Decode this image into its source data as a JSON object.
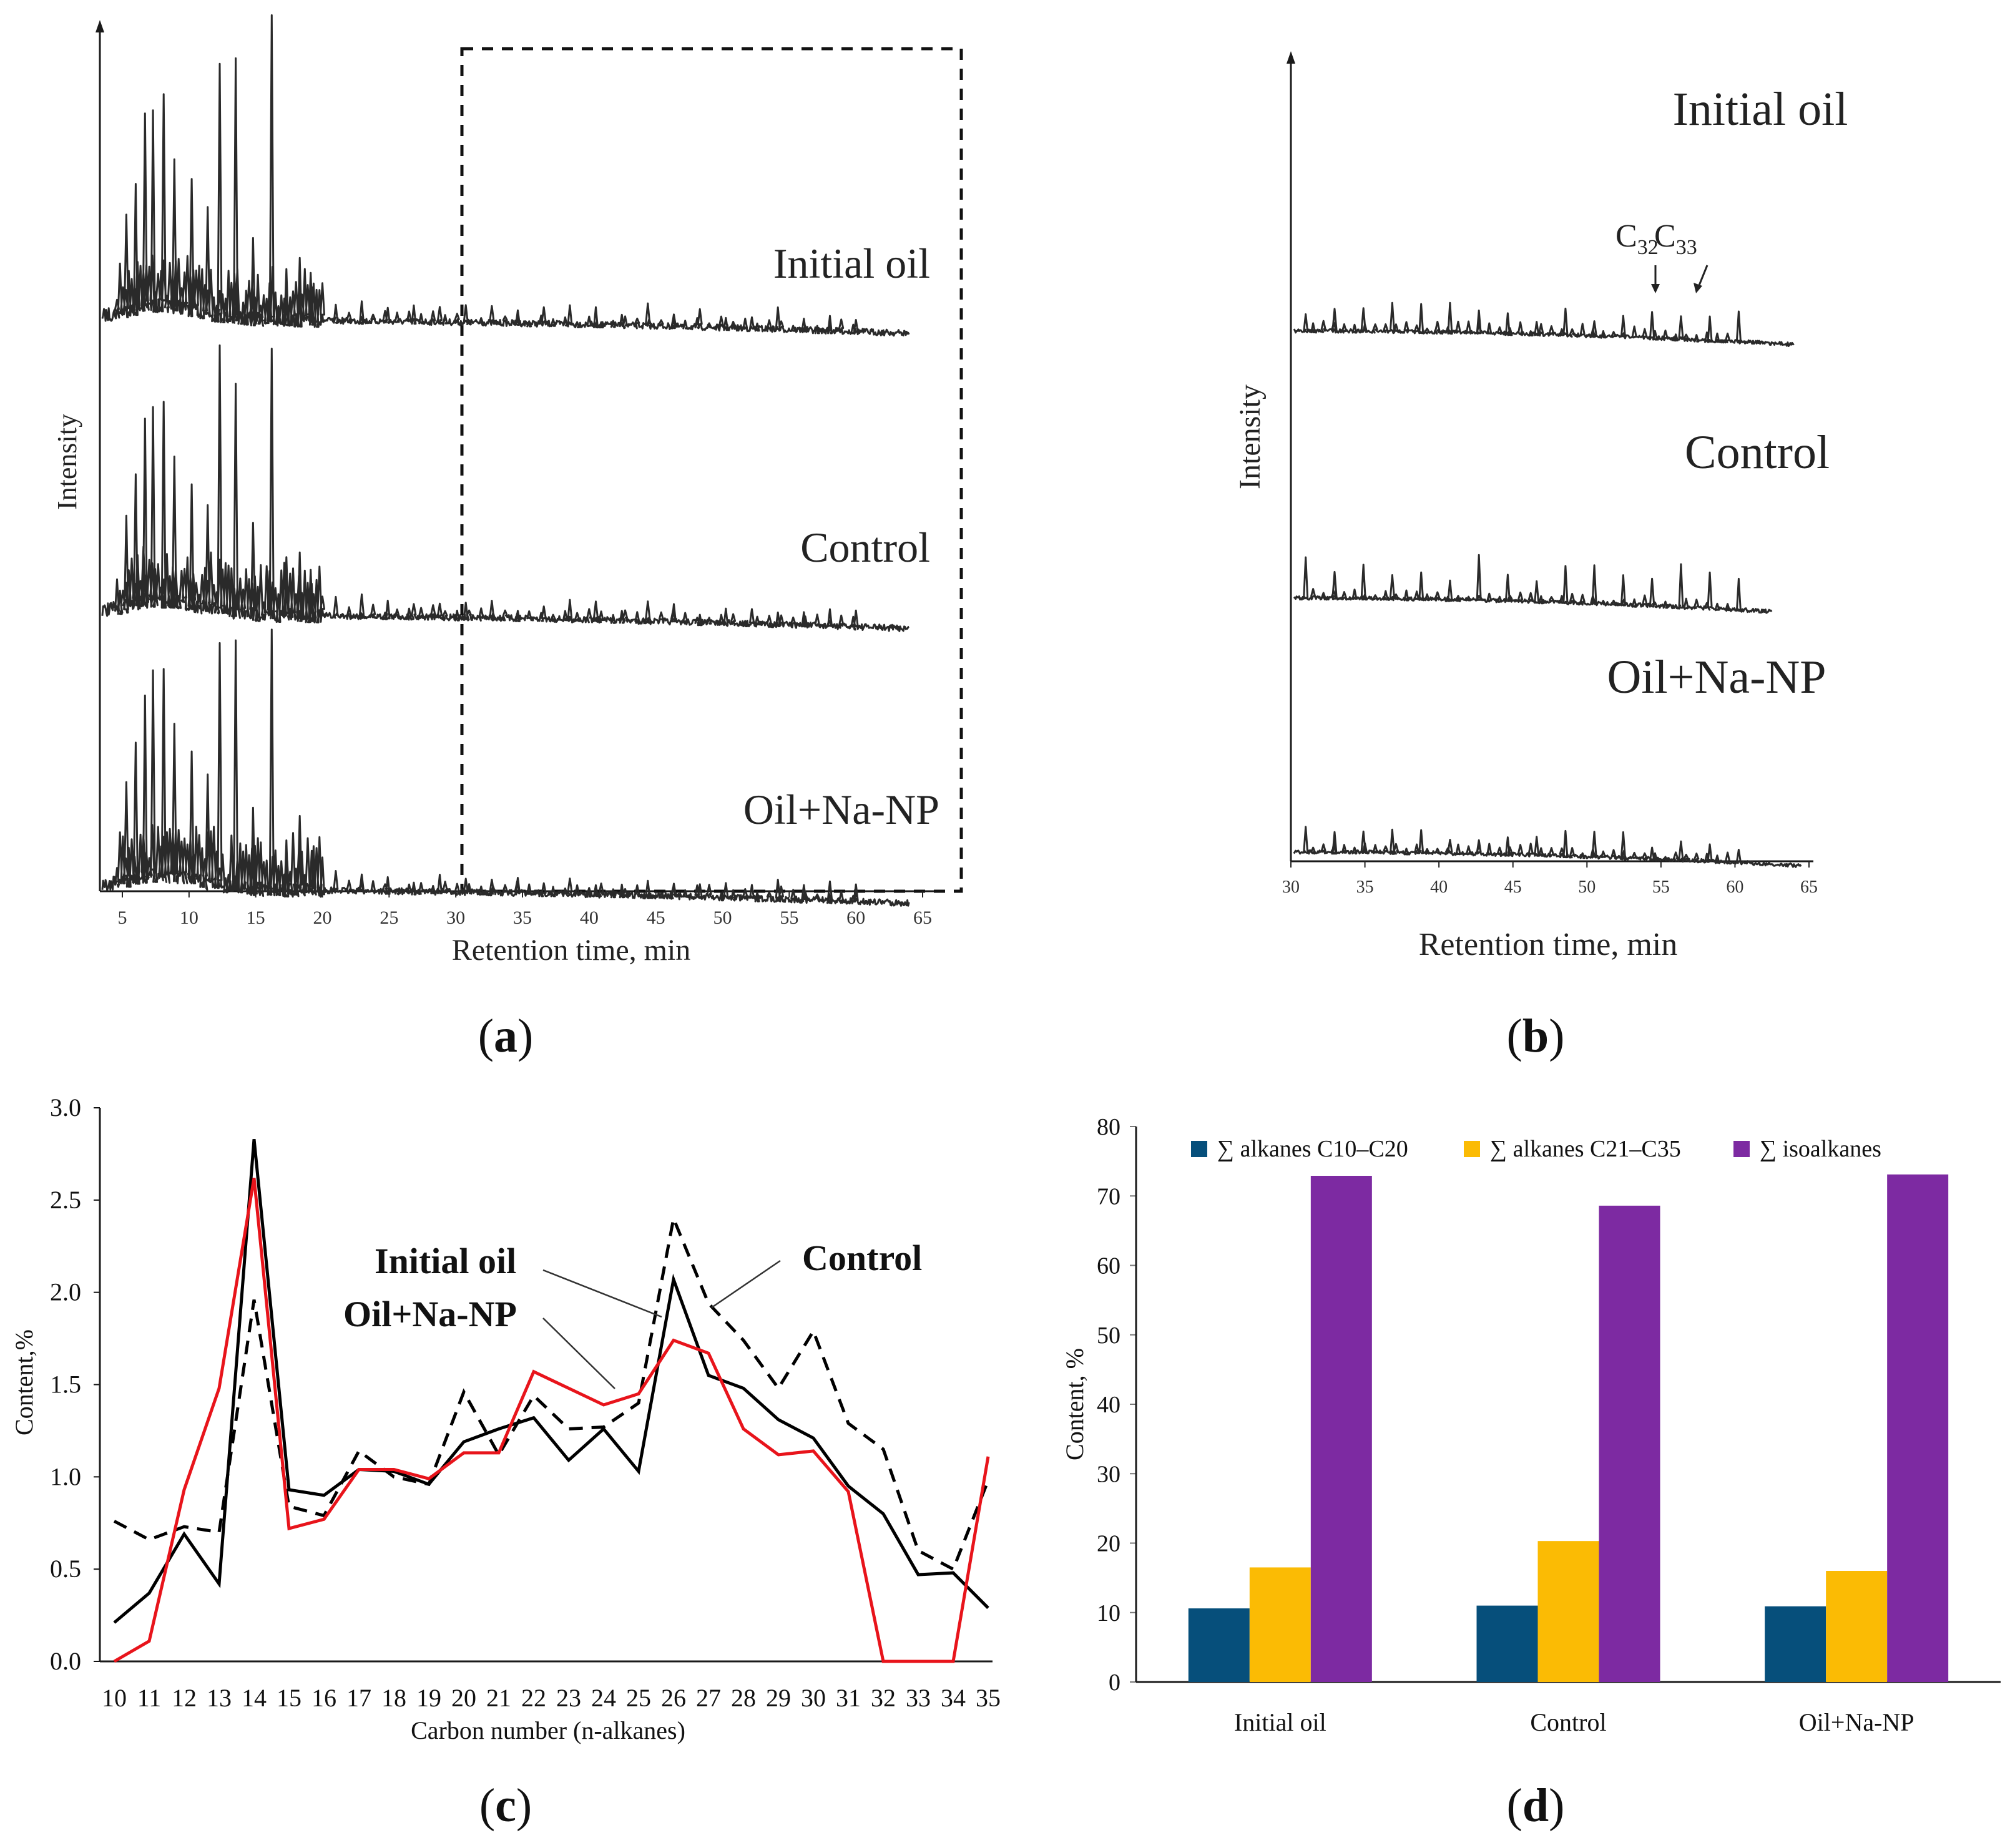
{
  "chart_data": [
    {
      "panel": "a",
      "type": "line",
      "caption_letter": "a",
      "ylabel": "Intensity",
      "xlabel": "Retention time, min",
      "x_ticks": [
        5,
        10,
        15,
        20,
        25,
        30,
        35,
        40,
        45,
        50,
        55,
        60,
        65
      ],
      "traces": [
        "Initial oil",
        "Control",
        "Oil+Na-NP"
      ],
      "highlight_range": [
        30,
        65
      ]
    },
    {
      "panel": "b",
      "type": "line",
      "caption_letter": "b",
      "ylabel": "Intensity",
      "xlabel": "Retention time, min",
      "x_ticks": [
        30,
        35,
        40,
        45,
        50,
        55,
        60,
        65
      ],
      "traces": [
        "Initial oil",
        "Control",
        "Oil+Na-NP"
      ],
      "annotations": [
        {
          "base": "C",
          "sub": "32",
          "x": 54.5
        },
        {
          "base": "C",
          "sub": "33",
          "x": 57.5
        }
      ]
    },
    {
      "panel": "c",
      "type": "line",
      "caption_letter": "c",
      "ylabel": "Content,%",
      "xlabel": "Carbon number (n-alkanes)",
      "ylim": [
        0,
        3.0
      ],
      "y_ticks": [
        "0.0",
        "0.5",
        "1.0",
        "1.5",
        "2.0",
        "2.5",
        "3.0"
      ],
      "categories": [
        10,
        11,
        12,
        13,
        14,
        15,
        16,
        17,
        18,
        19,
        20,
        21,
        22,
        23,
        24,
        25,
        26,
        27,
        28,
        29,
        30,
        31,
        32,
        33,
        34,
        35
      ],
      "series": [
        {
          "name": "Initial oil",
          "label": "Initial oil",
          "color": "#000000",
          "style": "solid",
          "values": [
            0.21,
            0.37,
            0.69,
            0.42,
            2.83,
            0.93,
            0.9,
            1.04,
            1.03,
            0.96,
            1.19,
            1.26,
            1.32,
            1.09,
            1.26,
            1.03,
            2.07,
            1.55,
            1.48,
            1.31,
            1.21,
            0.95,
            0.8,
            0.47,
            0.48,
            0.29
          ]
        },
        {
          "name": "Control",
          "label": "Control",
          "color": "#000000",
          "style": "dashed",
          "values": [
            0.76,
            0.66,
            0.73,
            0.7,
            1.96,
            0.84,
            0.79,
            1.14,
            1.0,
            0.96,
            1.46,
            1.12,
            1.44,
            1.26,
            1.27,
            1.4,
            2.4,
            1.94,
            1.74,
            1.48,
            1.79,
            1.29,
            1.15,
            0.6,
            0.5,
            0.98
          ]
        },
        {
          "name": "Oil+Na-NP",
          "label": "Oil+Na-NP",
          "color": "#e8141b",
          "style": "solid",
          "values": [
            0.0,
            0.11,
            0.93,
            1.48,
            2.62,
            0.72,
            0.77,
            1.04,
            1.04,
            0.99,
            1.13,
            1.13,
            1.57,
            1.48,
            1.39,
            1.45,
            1.74,
            1.67,
            1.26,
            1.12,
            1.14,
            0.92,
            0.0,
            0.0,
            0.0,
            1.11
          ]
        }
      ]
    },
    {
      "panel": "d",
      "type": "bar",
      "caption_letter": "d",
      "ylabel": "Content, %",
      "ylim": [
        0,
        80
      ],
      "y_ticks": [
        0,
        10,
        20,
        30,
        40,
        50,
        60,
        70,
        80
      ],
      "categories": [
        "Initial oil",
        "Control",
        "Oil+Na-NP"
      ],
      "legend_position": "top",
      "series": [
        {
          "name": "∑ alkanes C10–C20",
          "color": "#064f7b",
          "values": [
            10.6,
            11.0,
            10.9
          ]
        },
        {
          "name": "∑ alkanes C21–C35",
          "color": "#fbbb04",
          "values": [
            16.5,
            20.3,
            16.0
          ]
        },
        {
          "name": "∑ isoalkanes",
          "color": "#7d2aa2",
          "values": [
            72.9,
            68.6,
            73.1
          ]
        }
      ]
    }
  ]
}
